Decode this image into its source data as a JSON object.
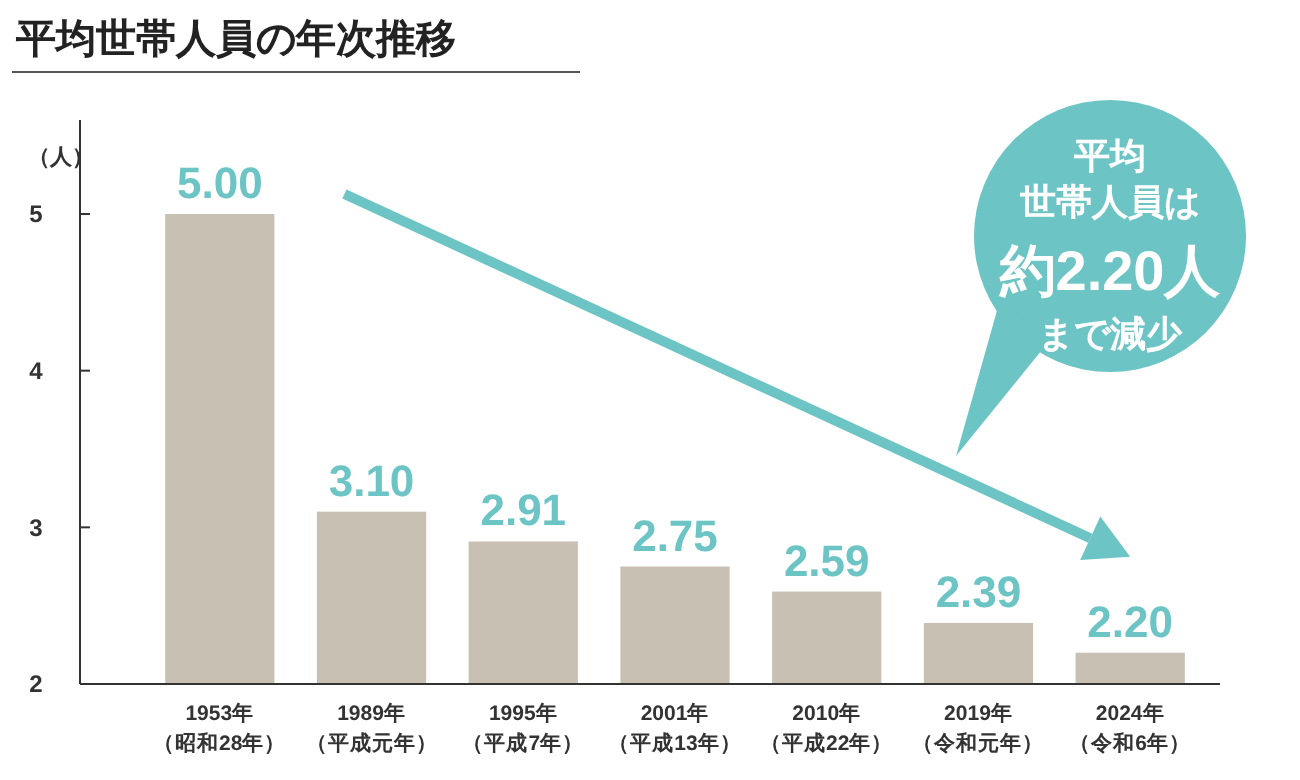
{
  "chart_data": {
    "type": "bar",
    "title": "平均世帯人員の年次推移",
    "ylabel": "（人）",
    "categories": [
      "1953年（昭和28年）",
      "1989年（平成元年）",
      "1995年（平成7年）",
      "2001年（平成13年）",
      "2010年（平成22年）",
      "2019年（令和元年）",
      "2024年（令和6年）"
    ],
    "values": [
      5.0,
      3.1,
      2.91,
      2.75,
      2.59,
      2.39,
      2.2
    ],
    "value_labels": [
      "5.00",
      "3.10",
      "2.91",
      "2.75",
      "2.59",
      "2.39",
      "2.20"
    ],
    "color": "#c9c0b4",
    "ylim": [
      2,
      5.6
    ],
    "yticks": [
      2,
      3,
      4,
      5
    ],
    "annotations": [
      "平均",
      "世帯人員は",
      "約2.20人",
      "まで減少"
    ],
    "grid": false
  }
}
